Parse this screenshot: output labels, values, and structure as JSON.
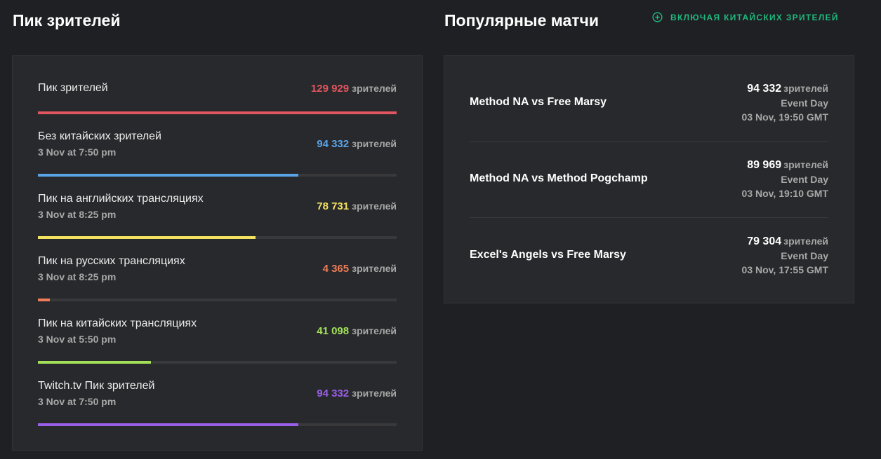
{
  "viewers_section": {
    "title": "Пик зрителей",
    "unit": "зрителей",
    "rows": [
      {
        "label": "Пик зрителей",
        "date": "",
        "value": "129 929",
        "color": "#e0555e",
        "fill": 1.0
      },
      {
        "label": "Без китайских зрителей",
        "date": "3 Nov at 7:50 pm",
        "value": "94 332",
        "color": "#5aa3e6",
        "fill": 0.726
      },
      {
        "label": "Пик на английских трансляциях",
        "date": "3 Nov at 8:25 pm",
        "value": "78 731",
        "color": "#f2e25f",
        "fill": 0.606
      },
      {
        "label": "Пик на русских трансляциях",
        "date": "3 Nov at 8:25 pm",
        "value": "4 365",
        "color": "#ee7d58",
        "fill": 0.034
      },
      {
        "label": "Пик на китайских трансляциях",
        "date": "3 Nov at 5:50 pm",
        "value": "41 098",
        "color": "#a2e05a",
        "fill": 0.316
      },
      {
        "label": "Twitch.tv Пик зрителей",
        "date": "3 Nov at 7:50 pm",
        "value": "94 332",
        "color": "#9a5ee8",
        "fill": 0.726
      }
    ]
  },
  "matches_section": {
    "title": "Популярные матчи",
    "toggle_label": "включая китайских зрителей",
    "toggle_icon": "plus-circle-icon",
    "accent_color": "#1fb87e",
    "unit": "зрителей",
    "matches": [
      {
        "name": "Method NA vs Free Marsy",
        "viewers": "94 332",
        "event": "Event Day",
        "time": "03 Nov, 19:50 GMT"
      },
      {
        "name": "Method NA vs Method Pogchamp",
        "viewers": "89 969",
        "event": "Event Day",
        "time": "03 Nov, 19:10 GMT"
      },
      {
        "name": "Excel's Angels vs Free Marsy",
        "viewers": "79 304",
        "event": "Event Day",
        "time": "03 Nov, 17:55 GMT"
      }
    ]
  }
}
